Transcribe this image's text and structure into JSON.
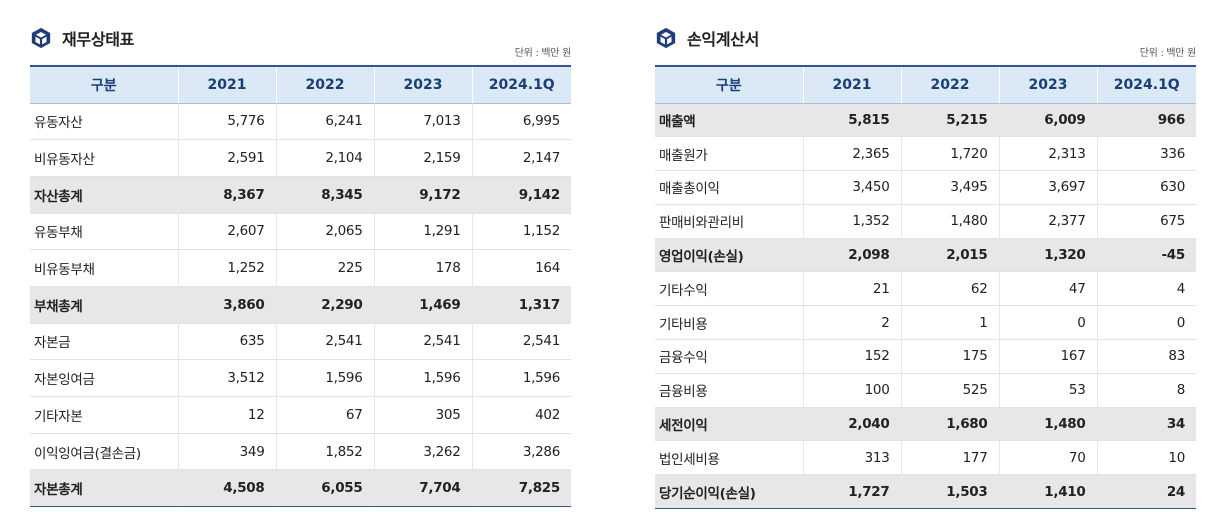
{
  "balance_sheet": {
    "title": "재무상태표",
    "unit": "단위 : 백만 원",
    "headers": [
      "구분",
      "2021",
      "2022",
      "2023",
      "2024.1Q"
    ],
    "rows": [
      {
        "label": "유동자산",
        "values": [
          "5,776",
          "6,241",
          "7,013",
          "6,995"
        ],
        "total": false
      },
      {
        "label": "비유동자산",
        "values": [
          "2,591",
          "2,104",
          "2,159",
          "2,147"
        ],
        "total": false
      },
      {
        "label": "자산총계",
        "values": [
          "8,367",
          "8,345",
          "9,172",
          "9,142"
        ],
        "total": true
      },
      {
        "label": "유동부채",
        "values": [
          "2,607",
          "2,065",
          "1,291",
          "1,152"
        ],
        "total": false
      },
      {
        "label": "비유동부채",
        "values": [
          "1,252",
          "225",
          "178",
          "164"
        ],
        "total": false
      },
      {
        "label": "부채총계",
        "values": [
          "3,860",
          "2,290",
          "1,469",
          "1,317"
        ],
        "total": true
      },
      {
        "label": "자본금",
        "values": [
          "635",
          "2,541",
          "2,541",
          "2,541"
        ],
        "total": false
      },
      {
        "label": "자본잉여금",
        "values": [
          "3,512",
          "1,596",
          "1,596",
          "1,596"
        ],
        "total": false
      },
      {
        "label": "기타자본",
        "values": [
          "12",
          "67",
          "305",
          "402"
        ],
        "total": false
      },
      {
        "label": "이익잉여금(결손금)",
        "values": [
          "349",
          "1,852",
          "3,262",
          "3,286"
        ],
        "total": false
      },
      {
        "label": "자본총계",
        "values": [
          "4,508",
          "6,055",
          "7,704",
          "7,825"
        ],
        "total": true
      }
    ]
  },
  "income_statement": {
    "title": "손익계산서",
    "unit": "단위 : 백만 원",
    "headers": [
      "구분",
      "2021",
      "2022",
      "2023",
      "2024.1Q"
    ],
    "rows": [
      {
        "label": "매출액",
        "values": [
          "5,815",
          "5,215",
          "6,009",
          "966"
        ],
        "total": true
      },
      {
        "label": "매출원가",
        "values": [
          "2,365",
          "1,720",
          "2,313",
          "336"
        ],
        "total": false
      },
      {
        "label": "매출총이익",
        "values": [
          "3,450",
          "3,495",
          "3,697",
          "630"
        ],
        "total": false
      },
      {
        "label": "판매비와관리비",
        "values": [
          "1,352",
          "1,480",
          "2,377",
          "675"
        ],
        "total": false
      },
      {
        "label": "영업이익(손실)",
        "values": [
          "2,098",
          "2,015",
          "1,320",
          "-45"
        ],
        "total": true
      },
      {
        "label": "기타수익",
        "values": [
          "21",
          "62",
          "47",
          "4"
        ],
        "total": false
      },
      {
        "label": "기타비용",
        "values": [
          "2",
          "1",
          "0",
          "0"
        ],
        "total": false
      },
      {
        "label": "금융수익",
        "values": [
          "152",
          "175",
          "167",
          "83"
        ],
        "total": false
      },
      {
        "label": "금융비용",
        "values": [
          "100",
          "525",
          "53",
          "8"
        ],
        "total": false
      },
      {
        "label": "세전이익",
        "values": [
          "2,040",
          "1,680",
          "1,480",
          "34"
        ],
        "total": true
      },
      {
        "label": "법인세비용",
        "values": [
          "313",
          "177",
          "70",
          "10"
        ],
        "total": false
      },
      {
        "label": "당기순이익(손실)",
        "values": [
          "1,727",
          "1,503",
          "1,410",
          "24"
        ],
        "total": true
      }
    ]
  },
  "icon": {
    "name": "cube-icon",
    "color": "#1f3d7a"
  }
}
